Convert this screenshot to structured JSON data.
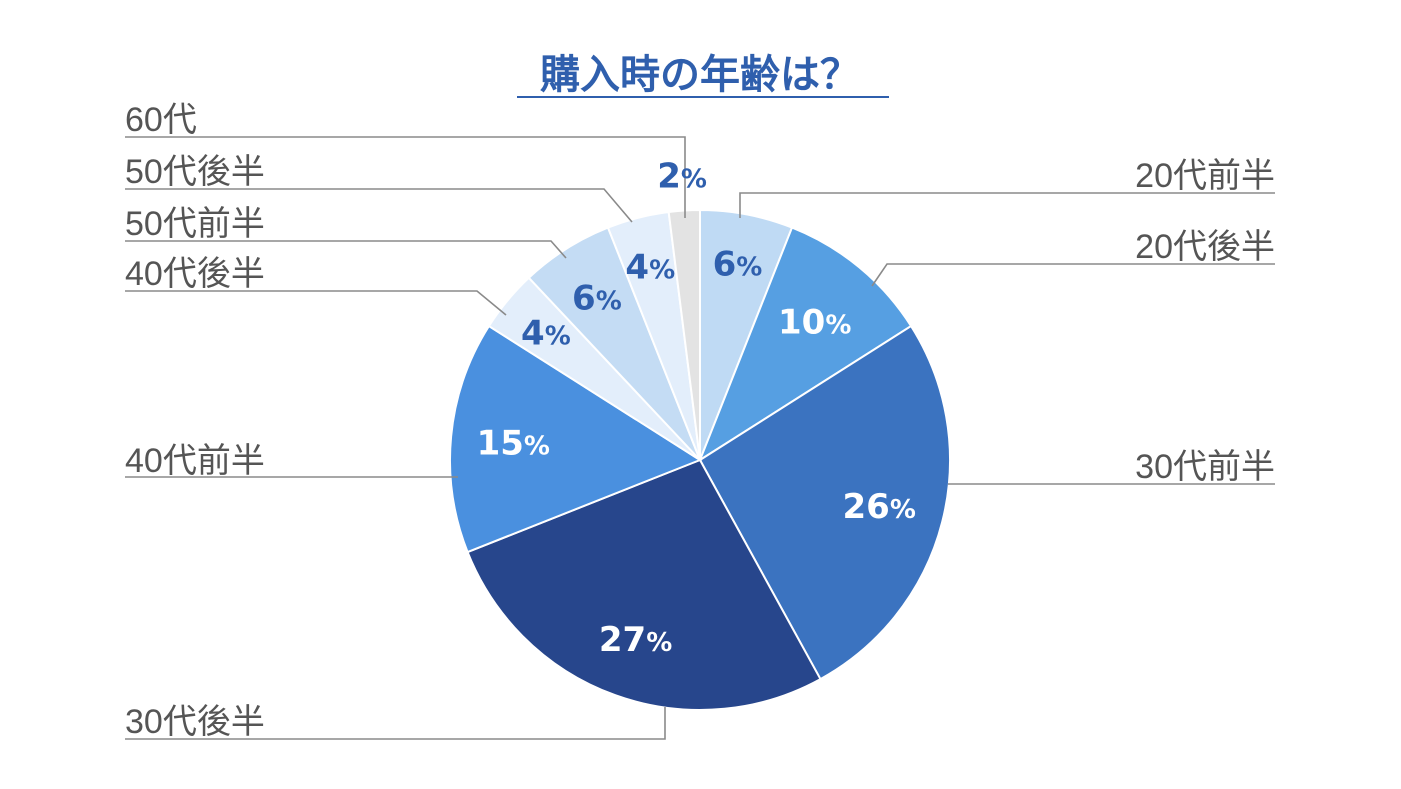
{
  "chart_data": {
    "type": "pie",
    "title": "購入時の年齢は？",
    "unit_suffix": "%",
    "slices": [
      {
        "label": "20代前半",
        "value": 6,
        "display": "6",
        "color": "#bfdaf4",
        "text_color": "#2f5fad"
      },
      {
        "label": "20代後半",
        "value": 10,
        "display": "10",
        "color": "#569fe2",
        "text_color": "#ffffff"
      },
      {
        "label": "30代前半",
        "value": 26,
        "display": "26",
        "color": "#3b73c0",
        "text_color": "#ffffff"
      },
      {
        "label": "30代後半",
        "value": 27,
        "display": "27",
        "color": "#27468c",
        "text_color": "#ffffff"
      },
      {
        "label": "40代前半",
        "value": 15,
        "display": "15",
        "color": "#4a90df",
        "text_color": "#ffffff"
      },
      {
        "label": "40代後半",
        "value": 4,
        "display": "4",
        "color": "#e3eefb",
        "text_color": "#2f5fad"
      },
      {
        "label": "50代前半",
        "value": 6,
        "display": "6",
        "color": "#c4dcf4",
        "text_color": "#2f5fad"
      },
      {
        "label": "50代後半",
        "value": 4,
        "display": "4",
        "color": "#e3eefb",
        "text_color": "#2f5fad"
      },
      {
        "label": "60代",
        "value": 2,
        "display": "2",
        "color": "#e3e3e3",
        "text_color": "#2f5fad"
      }
    ]
  }
}
